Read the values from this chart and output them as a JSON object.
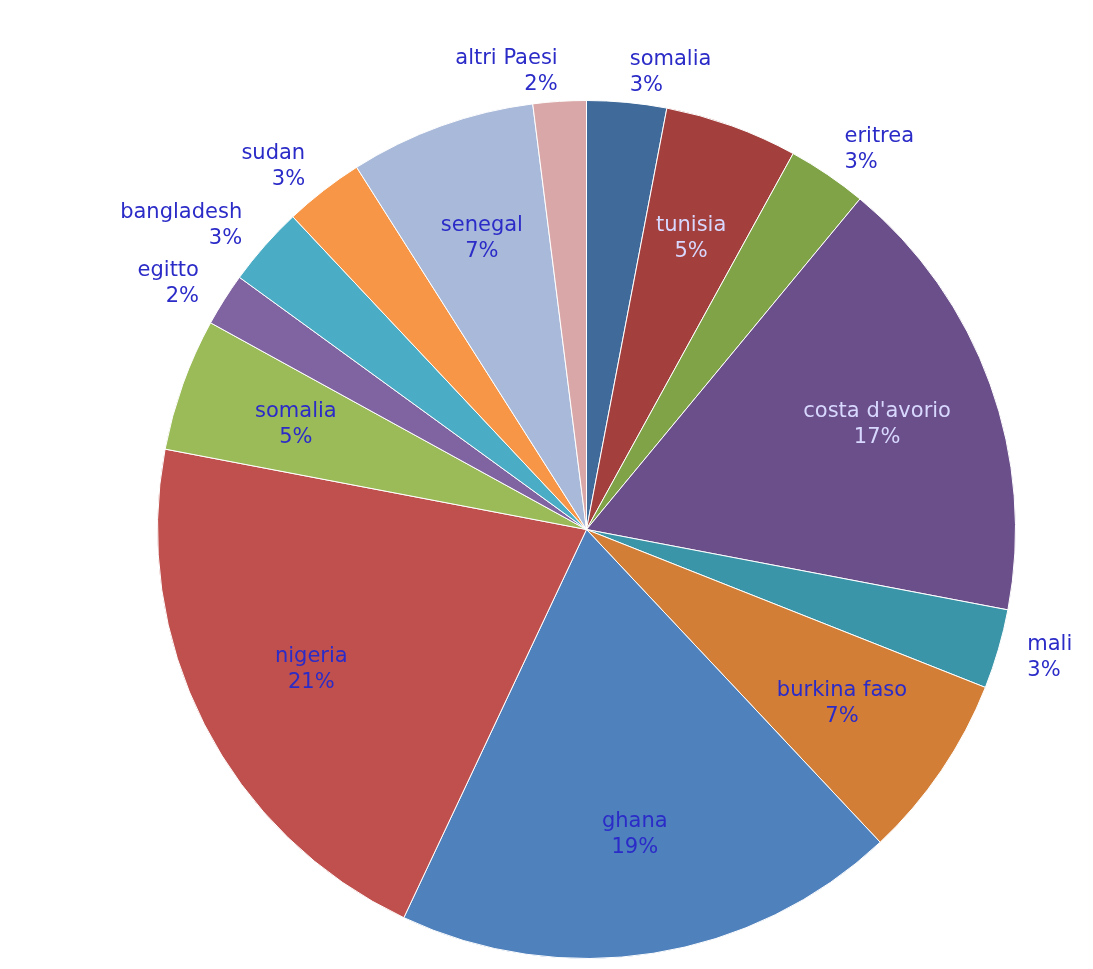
{
  "chart_data": {
    "type": "pie",
    "categories": [
      "somalia",
      "tunisia",
      "eritrea",
      "costa d'avorio",
      "mali",
      "burkina faso",
      "ghana",
      "nigeria",
      "somalia",
      "egitto",
      "bangladesh",
      "sudan",
      "senegal",
      "altri Paesi"
    ],
    "values": [
      3,
      5,
      3,
      17,
      3,
      7,
      19,
      21,
      5,
      2,
      3,
      3,
      7,
      2
    ],
    "value_labels": [
      "3%",
      "5%",
      "3%",
      "17%",
      "3%",
      "7%",
      "19%",
      "21%",
      "5%",
      "2%",
      "3%",
      "3%",
      "7%",
      "2%"
    ],
    "colors": [
      "#3f6a9a",
      "#a3403d",
      "#7fa346",
      "#6a4f8a",
      "#3a95a8",
      "#d27e36",
      "#4f81bd",
      "#c0504d",
      "#9bbb59",
      "#8064a2",
      "#4bacc6",
      "#f79646",
      "#a9b9d9",
      "#d9a7a7"
    ],
    "legend": false
  }
}
